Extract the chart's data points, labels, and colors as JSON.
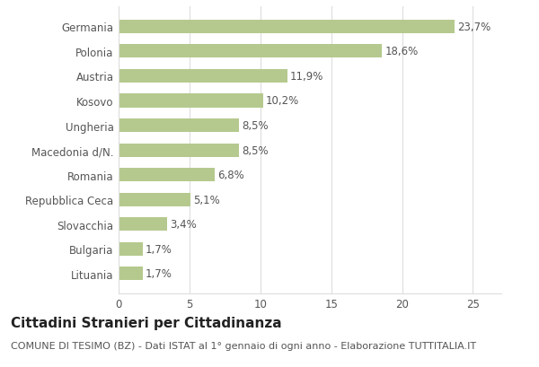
{
  "categories": [
    "Germania",
    "Polonia",
    "Austria",
    "Kosovo",
    "Ungheria",
    "Macedonia d/N.",
    "Romania",
    "Repubblica Ceca",
    "Slovacchia",
    "Bulgaria",
    "Lituania"
  ],
  "values": [
    23.7,
    18.6,
    11.9,
    10.2,
    8.5,
    8.5,
    6.8,
    5.1,
    3.4,
    1.7,
    1.7
  ],
  "labels": [
    "23,7%",
    "18,6%",
    "11,9%",
    "10,2%",
    "8,5%",
    "8,5%",
    "6,8%",
    "5,1%",
    "3,4%",
    "1,7%",
    "1,7%"
  ],
  "bar_color": "#b5c98e",
  "background_color": "#ffffff",
  "title": "Cittadini Stranieri per Cittadinanza",
  "subtitle": "COMUNE DI TESIMO (BZ) - Dati ISTAT al 1° gennaio di ogni anno - Elaborazione TUTTITALIA.IT",
  "xlim": [
    0,
    27
  ],
  "xticks": [
    0,
    5,
    10,
    15,
    20,
    25
  ],
  "title_fontsize": 11,
  "subtitle_fontsize": 8,
  "label_fontsize": 8.5,
  "tick_fontsize": 8.5,
  "grid_color": "#dddddd",
  "bar_height": 0.55
}
